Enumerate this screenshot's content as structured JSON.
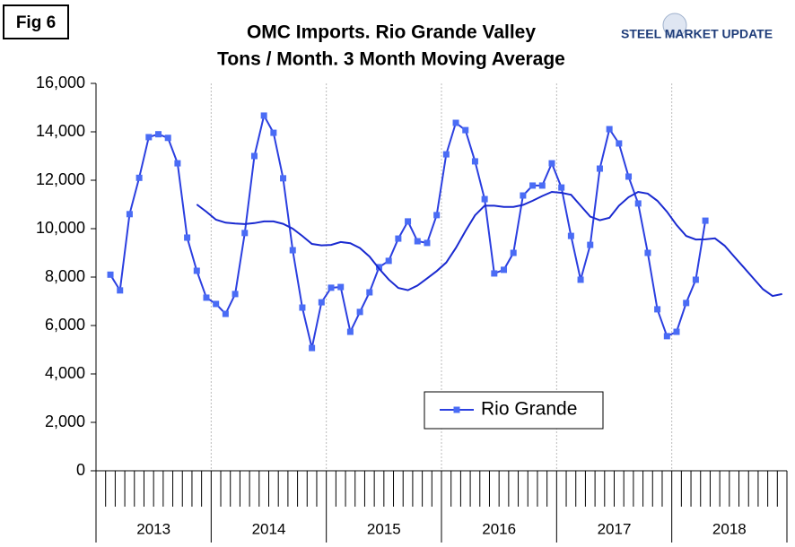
{
  "chart_data": {
    "type": "line",
    "figure_label": "Fig 6",
    "title": [
      "OMC Imports. Rio Grande Valley",
      "Tons / Month. 3 Month Moving Average"
    ],
    "logo": "STEEL MARKET UPDATE",
    "categories": [
      null,
      null,
      null,
      null,
      null,
      null,
      null,
      null,
      null,
      null,
      null,
      null,
      null,
      null,
      null,
      null,
      null,
      null,
      null,
      null,
      null,
      null,
      null,
      null,
      null,
      null,
      null,
      null,
      null,
      null,
      null,
      null,
      null,
      null,
      null,
      null,
      null,
      null,
      null,
      null,
      null,
      null,
      null,
      null,
      null,
      null,
      null,
      null,
      null,
      null,
      null,
      null,
      null,
      null,
      null,
      null,
      null,
      null,
      null,
      null,
      null,
      null,
      null,
      null,
      null,
      null,
      null,
      null,
      null,
      null,
      null,
      null
    ],
    "year_labels": [
      "2013",
      "2014",
      "2015",
      "2016",
      "2017",
      "2018"
    ],
    "series": [
      {
        "name": "Rio Grande",
        "color": "#2b3fe0",
        "marker_color": "#4a6cf5",
        "markers": true,
        "values": [
          null,
          8100,
          7450,
          10600,
          12100,
          13780,
          13900,
          13750,
          12700,
          9630,
          8260,
          7150,
          6890,
          6480,
          7300,
          9820,
          13000,
          14670,
          13960,
          12080,
          9110,
          6740,
          5070,
          6960,
          7560,
          7590,
          5740,
          6560,
          7370,
          8410,
          8670,
          9590,
          10300,
          9480,
          9410,
          10560,
          13070,
          14370,
          14070,
          12780,
          11220,
          8150,
          8300,
          9000,
          11370,
          11780,
          11780,
          12700,
          11700,
          9700,
          7890,
          9330,
          12480,
          14110,
          13520,
          12150,
          11040,
          9000,
          6670,
          5560,
          5740,
          6930,
          7890,
          10330,
          null,
          null,
          null,
          null,
          null,
          null,
          null,
          null
        ]
      },
      {
        "color": "#1a2ad0",
        "markers": false,
        "values": [
          null,
          null,
          null,
          null,
          null,
          null,
          null,
          null,
          null,
          null,
          11000,
          10700,
          10370,
          10250,
          10210,
          10190,
          10230,
          10300,
          10300,
          10200,
          10000,
          9700,
          9370,
          9310,
          9330,
          9450,
          9400,
          9200,
          8850,
          8350,
          7900,
          7550,
          7460,
          7650,
          7950,
          8250,
          8600,
          9200,
          9900,
          10550,
          10950,
          10950,
          10900,
          10900,
          10980,
          11150,
          11350,
          11520,
          11480,
          11400,
          10950,
          10500,
          10350,
          10450,
          10950,
          11300,
          11520,
          11450,
          11150,
          10700,
          10150,
          9700,
          9550,
          9560,
          9600,
          9300,
          8850,
          8400,
          7950,
          7500,
          7220,
          7300
        ]
      }
    ],
    "ylim": [
      0,
      16000
    ],
    "yticks": [
      0,
      {
        "value": 2000,
        "label": "2,000"
      },
      {
        "value": 4000,
        "label": "4,000"
      },
      {
        "value": 6000,
        "label": "6,000"
      },
      {
        "value": 8000,
        "label": "8,000"
      },
      {
        "value": 10000,
        "label": "10,000"
      },
      {
        "value": 12000,
        "label": "12,000"
      },
      {
        "value": 14000,
        "label": "14,000"
      },
      {
        "value": 16000,
        "label": "16,000"
      }
    ],
    "grid": false,
    "year_grid": true,
    "legend": "bottom-center"
  }
}
